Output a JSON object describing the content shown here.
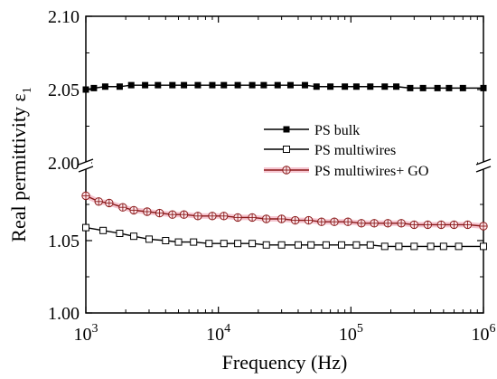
{
  "chart_data": {
    "type": "line",
    "xlabel": "Frequency (Hz)",
    "ylabel_main": "Real permittivity ε",
    "ylabel_sub": "1",
    "x_scale": "log",
    "xlim": [
      1000,
      1000000
    ],
    "x_ticks": [
      {
        "value": 1000,
        "base": "10",
        "exp": "3"
      },
      {
        "value": 10000,
        "base": "10",
        "exp": "4"
      },
      {
        "value": 100000,
        "base": "10",
        "exp": "5"
      },
      {
        "value": 1000000,
        "base": "10",
        "exp": "6"
      }
    ],
    "y_axis_break": true,
    "y_upper_range": [
      2.0,
      2.1
    ],
    "y_upper_ticks": [
      "2.00",
      "2.05",
      "2.10"
    ],
    "y_lower_range": [
      1.0,
      1.1
    ],
    "y_lower_ticks": [
      "1.00",
      "1.05"
    ],
    "legend_position": "center-right",
    "series": [
      {
        "name": "PS bulk",
        "marker": "filled-square",
        "color": "#000000",
        "x": [
          1000,
          1150,
          1400,
          1800,
          2200,
          2800,
          3500,
          4500,
          5500,
          7000,
          9000,
          11000,
          14000,
          18000,
          22000,
          28000,
          35000,
          45000,
          55000,
          70000,
          90000,
          110000,
          140000,
          180000,
          220000,
          280000,
          350000,
          450000,
          550000,
          700000,
          1000000
        ],
        "values": [
          2.05,
          2.051,
          2.052,
          2.052,
          2.053,
          2.053,
          2.053,
          2.053,
          2.053,
          2.053,
          2.053,
          2.053,
          2.053,
          2.053,
          2.053,
          2.053,
          2.053,
          2.053,
          2.052,
          2.052,
          2.052,
          2.052,
          2.052,
          2.052,
          2.052,
          2.051,
          2.051,
          2.051,
          2.051,
          2.051,
          2.051
        ]
      },
      {
        "name": "PS multiwires",
        "marker": "open-square",
        "color": "#000000",
        "x": [
          1000,
          1350,
          1800,
          2300,
          3000,
          4000,
          5000,
          6500,
          8500,
          11000,
          14000,
          18000,
          23000,
          30000,
          40000,
          50000,
          65000,
          85000,
          110000,
          140000,
          180000,
          230000,
          300000,
          400000,
          500000,
          650000,
          1000000
        ],
        "values": [
          1.059,
          1.057,
          1.055,
          1.053,
          1.051,
          1.05,
          1.049,
          1.049,
          1.048,
          1.048,
          1.048,
          1.048,
          1.047,
          1.047,
          1.047,
          1.047,
          1.047,
          1.047,
          1.047,
          1.047,
          1.046,
          1.046,
          1.046,
          1.046,
          1.046,
          1.046,
          1.046
        ]
      },
      {
        "name": "PS multiwires+ GO",
        "marker": "circle-plus",
        "color": "#8b1a1a",
        "x": [
          1000,
          1250,
          1500,
          1900,
          2300,
          2900,
          3600,
          4500,
          5500,
          7000,
          9000,
          11000,
          14000,
          18000,
          23000,
          30000,
          38000,
          48000,
          60000,
          75000,
          95000,
          120000,
          150000,
          190000,
          240000,
          300000,
          380000,
          480000,
          600000,
          760000,
          1000000
        ],
        "values": [
          1.081,
          1.077,
          1.076,
          1.073,
          1.071,
          1.07,
          1.069,
          1.068,
          1.068,
          1.067,
          1.067,
          1.067,
          1.066,
          1.066,
          1.065,
          1.065,
          1.064,
          1.064,
          1.063,
          1.063,
          1.063,
          1.062,
          1.062,
          1.062,
          1.062,
          1.061,
          1.061,
          1.061,
          1.061,
          1.061,
          1.06
        ]
      }
    ]
  }
}
